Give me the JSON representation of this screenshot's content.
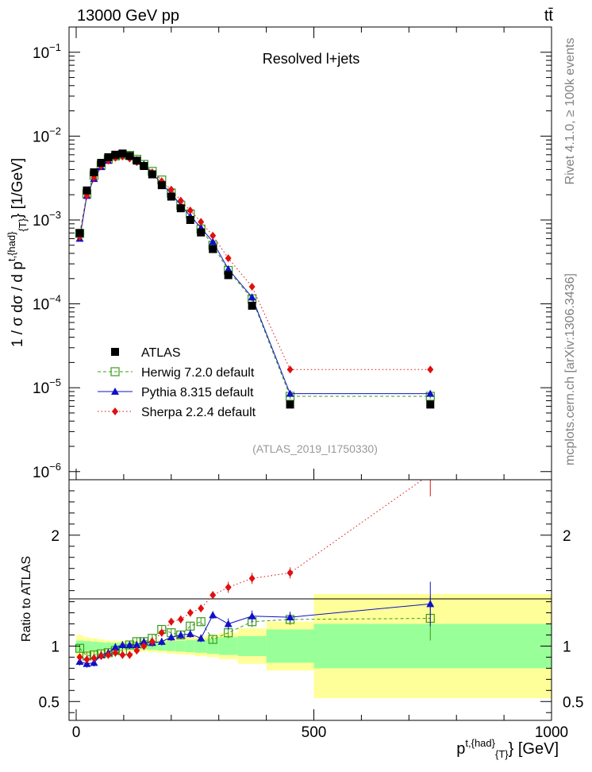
{
  "header": {
    "left_title": "13000 GeV pp",
    "right_title": "tt̄",
    "side_label_top": "Rivet 4.1.0, ≥ 100k events",
    "side_label_bottom": "mcplots.cern.ch [arXiv:1306.3436]"
  },
  "chart_data": [
    {
      "type": "scatter",
      "panel": "main",
      "title": "Resolved l+jets",
      "watermark": "(ATLAS_2019_I1750330)",
      "ylabel": "1 / σ dσ / d p^{t,{had}}_{T} [1/GeV]",
      "yscale": "log",
      "xlim": [
        -15,
        1000
      ],
      "ylim": [
        8e-07,
        0.2
      ],
      "y_ticks": [
        {
          "label": "10",
          "exp": "−6",
          "value": 1e-06
        },
        {
          "label": "10",
          "exp": "−5",
          "value": 1e-05
        },
        {
          "label": "10",
          "exp": "−4",
          "value": 0.0001
        },
        {
          "label": "10",
          "exp": "−3",
          "value": 0.001
        },
        {
          "label": "10",
          "exp": "−2",
          "value": 0.01
        },
        {
          "label": "10",
          "exp": "−1",
          "value": 0.1
        }
      ],
      "legend_position": "middle-left",
      "x": [
        7.5,
        22.5,
        37.5,
        52.5,
        67.5,
        82.5,
        97.5,
        112.5,
        127.5,
        142.5,
        160,
        180,
        200,
        220,
        240,
        262.5,
        287.5,
        320,
        370,
        450,
        745
      ],
      "series": [
        {
          "name": "ATLAS",
          "color": "#000000",
          "marker": "square-filled",
          "values": [
            0.0007,
            0.00225,
            0.0037,
            0.0048,
            0.0056,
            0.006,
            0.0062,
            0.0058,
            0.0051,
            0.0044,
            0.0035,
            0.0026,
            0.0019,
            0.00138,
            0.001,
            0.00071,
            0.00045,
            0.00022,
            9.5e-05,
            6.3e-06,
            6.3e-06
          ]
        },
        {
          "name": "Herwig 7.2.0 default",
          "color": "#3a9c1a",
          "marker": "square-open",
          "line": "dashed",
          "values": [
            0.00069,
            0.00205,
            0.0034,
            0.0045,
            0.0053,
            0.0058,
            0.006,
            0.0059,
            0.0053,
            0.0046,
            0.0038,
            0.003,
            0.0021,
            0.0015,
            0.00118,
            0.00078,
            0.0005,
            0.00025,
            0.000115,
            7.9e-06,
            7.9e-06
          ]
        },
        {
          "name": "Pythia 8.315 default",
          "color": "#1010c8",
          "marker": "triangle",
          "line": "solid",
          "values": [
            0.0006,
            0.00195,
            0.0031,
            0.0043,
            0.0051,
            0.0058,
            0.0061,
            0.0059,
            0.0052,
            0.0046,
            0.0036,
            0.0027,
            0.00205,
            0.0015,
            0.00111,
            0.00081,
            0.00055,
            0.00026,
            0.00012,
            8.5e-06,
            8.5e-06
          ]
        },
        {
          "name": "Sherpa 2.2.4 default",
          "color": "#e01010",
          "marker": "diamond",
          "line": "dotted",
          "values": [
            0.00063,
            0.00195,
            0.0032,
            0.0044,
            0.0051,
            0.0055,
            0.0057,
            0.0054,
            0.0049,
            0.0044,
            0.0037,
            0.0029,
            0.0023,
            0.0017,
            0.0013,
            0.00095,
            0.00065,
            0.00035,
            0.00016,
            1.65e-05,
            1.65e-05
          ]
        }
      ]
    },
    {
      "type": "scatter",
      "panel": "ratio",
      "ylabel": "Ratio to ATLAS",
      "xlabel": "p^{t,{had}}_{T} [GeV]",
      "xlim": [
        -15,
        1000
      ],
      "ylim": [
        0.33,
        2.5
      ],
      "x_ticks": [
        0,
        500,
        1000
      ],
      "y_ticks": [
        0.5,
        1,
        2
      ],
      "bins": [
        [
          0,
          15
        ],
        [
          15,
          30
        ],
        [
          30,
          45
        ],
        [
          45,
          60
        ],
        [
          60,
          75
        ],
        [
          75,
          90
        ],
        [
          90,
          105
        ],
        [
          105,
          120
        ],
        [
          120,
          135
        ],
        [
          135,
          150
        ],
        [
          150,
          170
        ],
        [
          170,
          190
        ],
        [
          190,
          210
        ],
        [
          210,
          230
        ],
        [
          230,
          250
        ],
        [
          250,
          275
        ],
        [
          275,
          300
        ],
        [
          300,
          340
        ],
        [
          340,
          400
        ],
        [
          400,
          500
        ],
        [
          500,
          1000
        ]
      ],
      "band_green_halfwidth": [
        0.05,
        0.045,
        0.04,
        0.035,
        0.03,
        0.03,
        0.03,
        0.03,
        0.03,
        0.03,
        0.035,
        0.04,
        0.045,
        0.05,
        0.055,
        0.06,
        0.07,
        0.08,
        0.09,
        0.15,
        0.2
      ],
      "band_yellow_halfwidth": [
        0.1,
        0.08,
        0.07,
        0.06,
        0.05,
        0.05,
        0.05,
        0.05,
        0.05,
        0.05,
        0.055,
        0.06,
        0.07,
        0.075,
        0.08,
        0.09,
        0.1,
        0.12,
        0.16,
        0.22,
        0.47
      ],
      "series": [
        {
          "name": "Herwig 7.2.0 default",
          "color": "#3a9c1a",
          "x": [
            7.5,
            22.5,
            37.5,
            52.5,
            67.5,
            82.5,
            97.5,
            112.5,
            127.5,
            142.5,
            160,
            180,
            200,
            220,
            240,
            262.5,
            287.5,
            320,
            370,
            450,
            745
          ],
          "values": [
            0.98,
            0.91,
            0.92,
            0.93,
            0.94,
            0.96,
            0.96,
            1.01,
            1.04,
            1.04,
            1.07,
            1.15,
            1.12,
            1.1,
            1.18,
            1.22,
            1.06,
            1.12,
            1.22,
            1.24,
            1.25
          ]
        },
        {
          "name": "Pythia 8.315 default",
          "color": "#1010c8",
          "x": [
            7.5,
            22.5,
            37.5,
            52.5,
            67.5,
            82.5,
            97.5,
            112.5,
            127.5,
            142.5,
            160,
            180,
            200,
            220,
            240,
            262.5,
            287.5,
            320,
            370,
            450,
            745
          ],
          "values": [
            0.86,
            0.84,
            0.85,
            0.92,
            0.94,
            0.99,
            1.01,
            1.01,
            1.01,
            1.04,
            1.03,
            1.04,
            1.08,
            1.1,
            1.11,
            1.07,
            1.28,
            1.2,
            1.27,
            1.26,
            1.38
          ]
        },
        {
          "name": "Sherpa 2.2.4 default",
          "color": "#e01010",
          "x": [
            7.5,
            22.5,
            37.5,
            52.5,
            67.5,
            82.5,
            97.5,
            112.5,
            127.5,
            142.5,
            160,
            180,
            200,
            220,
            240,
            262.5,
            287.5,
            320,
            370,
            450,
            745
          ],
          "values": [
            0.9,
            0.88,
            0.89,
            0.91,
            0.92,
            0.94,
            0.92,
            0.92,
            0.96,
            1.0,
            1.04,
            1.12,
            1.22,
            1.24,
            1.3,
            1.34,
            1.46,
            1.53,
            1.61,
            1.66,
            2.55
          ]
        }
      ]
    }
  ]
}
